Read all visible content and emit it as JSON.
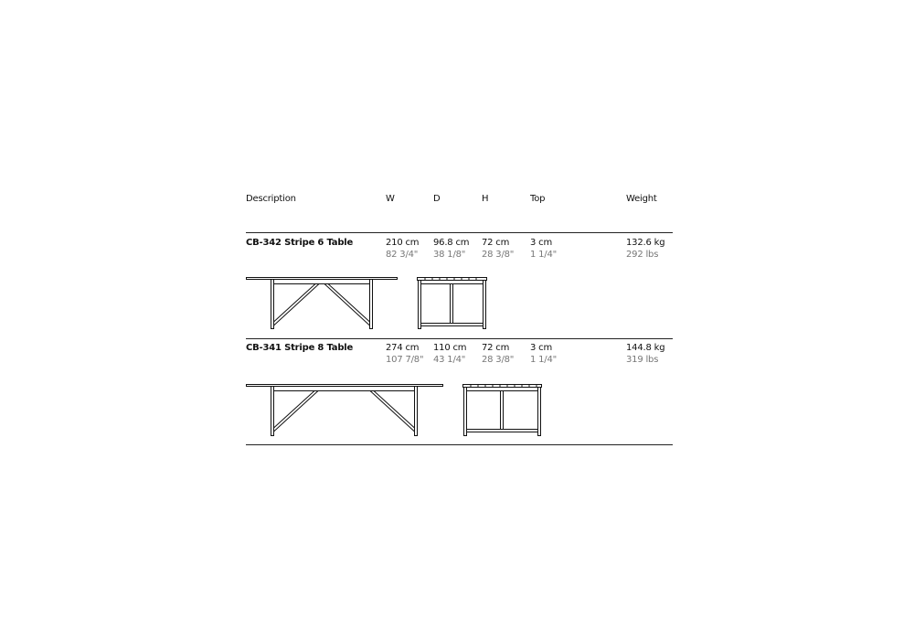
{
  "header": {
    "description": "Description",
    "w": "W",
    "d": "D",
    "h": "H",
    "top": "Top",
    "weight": "Weight"
  },
  "products": [
    {
      "name": "CB-342 Stripe 6 Table",
      "w_cm": "210 cm",
      "w_in": "82 3/4\"",
      "d_cm": "96.8 cm",
      "d_in": "38 1/8\"",
      "h_cm": "72 cm",
      "h_in": "28 3/8\"",
      "top_cm": "3 cm",
      "top_in": "1 1/4\"",
      "weight_kg": "132.6 kg",
      "weight_lbs": "292 lbs"
    },
    {
      "name": "CB-341 Stripe 8 Table",
      "w_cm": "274 cm",
      "w_in": "107 7/8\"",
      "d_cm": "110 cm",
      "d_in": "43 1/4\"",
      "h_cm": "72 cm",
      "h_in": "28 3/8\"",
      "top_cm": "3 cm",
      "top_in": "1 1/4\"",
      "weight_kg": "144.8 kg",
      "weight_lbs": "319 lbs"
    }
  ]
}
